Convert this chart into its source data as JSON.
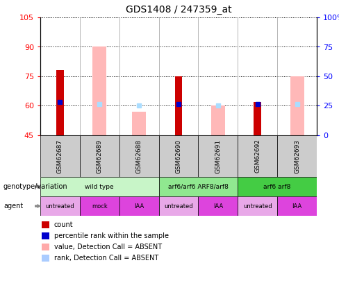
{
  "title": "GDS1408 / 247359_at",
  "samples": [
    "GSM62687",
    "GSM62689",
    "GSM62688",
    "GSM62690",
    "GSM62691",
    "GSM62692",
    "GSM62693"
  ],
  "ylim_left": [
    45,
    105
  ],
  "ylim_right": [
    0,
    100
  ],
  "yticks_left": [
    45,
    60,
    75,
    90,
    105
  ],
  "yticks_right": [
    0,
    25,
    50,
    75,
    100
  ],
  "ytick_labels_right": [
    "0",
    "25",
    "50",
    "75",
    "100%"
  ],
  "red_bars": [
    78,
    0,
    0,
    75,
    0,
    62,
    0
  ],
  "pink_bars": [
    0,
    90,
    57,
    0,
    60,
    0,
    75
  ],
  "blue_dots": [
    62,
    0,
    0,
    61,
    0,
    61,
    0
  ],
  "lightblue_dots": [
    0,
    61,
    60,
    0,
    60,
    0,
    61
  ],
  "bar_bottom": 45,
  "genotype_groups": [
    {
      "label": "wild type",
      "start": 0,
      "end": 3,
      "color": "#c8f5c8"
    },
    {
      "label": "arf6/arf6 ARF8/arf8",
      "start": 3,
      "end": 5,
      "color": "#90e890"
    },
    {
      "label": "arf6 arf8",
      "start": 5,
      "end": 7,
      "color": "#44cc44"
    }
  ],
  "agent_groups": [
    {
      "label": "untreated",
      "start": 0,
      "end": 1,
      "color": "#e8a8e8"
    },
    {
      "label": "mock",
      "start": 1,
      "end": 2,
      "color": "#dd44dd"
    },
    {
      "label": "IAA",
      "start": 2,
      "end": 3,
      "color": "#dd44dd"
    },
    {
      "label": "untreated",
      "start": 3,
      "end": 4,
      "color": "#e8a8e8"
    },
    {
      "label": "IAA",
      "start": 4,
      "end": 5,
      "color": "#dd44dd"
    },
    {
      "label": "untreated",
      "start": 5,
      "end": 6,
      "color": "#e8a8e8"
    },
    {
      "label": "IAA",
      "start": 6,
      "end": 7,
      "color": "#dd44dd"
    }
  ],
  "legend_items": [
    {
      "label": "count",
      "color": "#cc0000"
    },
    {
      "label": "percentile rank within the sample",
      "color": "#0000cc"
    },
    {
      "label": "value, Detection Call = ABSENT",
      "color": "#ffaaaa"
    },
    {
      "label": "rank, Detection Call = ABSENT",
      "color": "#aaccff"
    }
  ],
  "red_color": "#cc0000",
  "pink_color": "#ffb8b8",
  "blue_color": "#0000cc",
  "lightblue_color": "#aaddff",
  "sample_box_color": "#cccccc",
  "bar_width": 0.35
}
